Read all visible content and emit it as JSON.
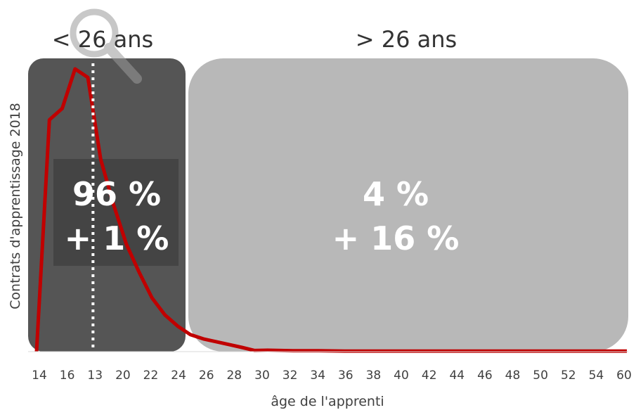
{
  "chart_data": {
    "type": "line",
    "xlabel": "âge de l'apprenti",
    "ylabel": "Contrats d'apprentissage 2018",
    "x_ticks": [
      "14",
      "16",
      "13",
      "20",
      "22",
      "24",
      "26",
      "28",
      "30",
      "32",
      "34",
      "36",
      "38",
      "40",
      "42",
      "44",
      "46",
      "48",
      "50",
      "52",
      "54",
      "60"
    ],
    "x_range": [
      14,
      60
    ],
    "y_range": [
      0,
      100
    ],
    "series": [
      {
        "color": "#c00000",
        "x": [
          14,
          15,
          16,
          17,
          18,
          19,
          20,
          21,
          22,
          23,
          24,
          25,
          26,
          27,
          28,
          29,
          30,
          31,
          32,
          34,
          36,
          38,
          40,
          42,
          44,
          46,
          48,
          50,
          52,
          54,
          56,
          58,
          60
        ],
        "y": [
          0,
          82,
          86,
          100,
          97,
          68,
          52,
          38,
          28,
          19,
          13,
          9,
          6,
          4.5,
          3.5,
          2.5,
          1.5,
          0.4,
          0.5,
          0.3,
          0.3,
          0.2,
          0.2,
          0.2,
          0.2,
          0.2,
          0.2,
          0.2,
          0.2,
          0.2,
          0.2,
          0.2,
          0.2
        ]
      }
    ],
    "marker_line": {
      "x": 18.4,
      "style": "dotted",
      "color": "#ffffff"
    },
    "groups": [
      {
        "label": "< 26 ans",
        "x_range": [
          14,
          25.5
        ],
        "share": "96 %",
        "change": "+ 1 %",
        "fill": "#555555"
      },
      {
        "label": "> 26 ans",
        "x_range": [
          25.5,
          60
        ],
        "share": "4 %",
        "change": "+ 16 %",
        "fill": "#b8b8b8"
      }
    ],
    "icons": [
      "magnifier-icon"
    ],
    "grid": false,
    "legend": "none"
  }
}
